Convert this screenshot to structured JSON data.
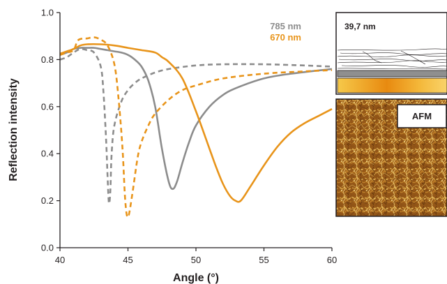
{
  "chart_data": {
    "type": "line",
    "xlabel": "Angle (°)",
    "ylabel": "Reflection intensity",
    "xlim": [
      40,
      60
    ],
    "ylim": [
      0.0,
      1.0
    ],
    "xticks": [
      40,
      45,
      50,
      55,
      60
    ],
    "yticks": [
      0.0,
      0.2,
      0.4,
      0.6,
      0.8,
      1.0
    ],
    "xtick_labels": [
      "40",
      "45",
      "50",
      "55",
      "60"
    ],
    "ytick_labels": [
      "0.0",
      "0.2",
      "0.4",
      "0.6",
      "0.8",
      "1.0"
    ],
    "grid": false,
    "legend_position": "top-right",
    "legend": [
      {
        "label": "785 nm",
        "color": "#8c8c8c"
      },
      {
        "label": "670 nm",
        "color": "#e8941a"
      }
    ],
    "series": [
      {
        "wavelength": "785 nm",
        "style": "dashed",
        "color": "#8c8c8c",
        "x": [
          40.0,
          40.5,
          41.0,
          41.5,
          42.0,
          42.5,
          43.0,
          43.2,
          43.4,
          43.5,
          43.6,
          43.7,
          43.8,
          44.0,
          44.5,
          45.0,
          45.5,
          46.0,
          47.0,
          48.0,
          50.0,
          52.0,
          55.0,
          58.0,
          60.0
        ],
        "y": [
          0.8,
          0.81,
          0.83,
          0.845,
          0.84,
          0.83,
          0.77,
          0.66,
          0.45,
          0.3,
          0.19,
          0.24,
          0.4,
          0.52,
          0.62,
          0.67,
          0.7,
          0.72,
          0.745,
          0.76,
          0.775,
          0.78,
          0.78,
          0.775,
          0.77
        ]
      },
      {
        "wavelength": "785 nm",
        "style": "solid",
        "color": "#8c8c8c",
        "x": [
          40.0,
          40.5,
          41.0,
          41.5,
          42.0,
          42.5,
          43.0,
          43.5,
          44.0,
          44.5,
          45.0,
          45.5,
          46.0,
          46.5,
          47.0,
          47.5,
          48.0,
          48.3,
          48.6,
          49.0,
          49.5,
          50.0,
          51.0,
          52.0,
          53.0,
          55.0,
          57.0,
          60.0
        ],
        "y": [
          0.82,
          0.83,
          0.845,
          0.85,
          0.85,
          0.85,
          0.845,
          0.84,
          0.835,
          0.83,
          0.82,
          0.8,
          0.77,
          0.71,
          0.6,
          0.42,
          0.28,
          0.25,
          0.28,
          0.36,
          0.45,
          0.52,
          0.6,
          0.65,
          0.68,
          0.72,
          0.74,
          0.76
        ]
      },
      {
        "wavelength": "670 nm",
        "style": "dashed",
        "color": "#e8941a",
        "x": [
          40.0,
          40.5,
          41.0,
          41.3,
          41.7,
          42.0,
          42.5,
          43.0,
          43.5,
          44.0,
          44.3,
          44.6,
          44.8,
          45.0,
          45.3,
          45.7,
          46.0,
          46.5,
          47.0,
          48.0,
          49.0,
          50.0,
          52.0,
          55.0,
          58.0,
          60.0
        ],
        "y": [
          0.82,
          0.83,
          0.84,
          0.88,
          0.89,
          0.89,
          0.895,
          0.885,
          0.86,
          0.78,
          0.64,
          0.42,
          0.2,
          0.13,
          0.22,
          0.38,
          0.45,
          0.52,
          0.57,
          0.63,
          0.67,
          0.69,
          0.72,
          0.74,
          0.75,
          0.755
        ]
      },
      {
        "wavelength": "670 nm",
        "style": "solid",
        "color": "#e8941a",
        "x": [
          40.0,
          40.5,
          41.0,
          41.5,
          42.0,
          43.0,
          44.0,
          45.0,
          46.0,
          47.0,
          47.5,
          48.0,
          49.0,
          50.0,
          51.0,
          51.5,
          52.0,
          52.5,
          52.9,
          53.3,
          54.0,
          55.0,
          56.0,
          57.0,
          58.0,
          59.0,
          60.0
        ],
        "y": [
          0.825,
          0.835,
          0.845,
          0.86,
          0.865,
          0.865,
          0.86,
          0.85,
          0.84,
          0.83,
          0.81,
          0.79,
          0.72,
          0.58,
          0.42,
          0.34,
          0.27,
          0.22,
          0.2,
          0.2,
          0.26,
          0.35,
          0.43,
          0.49,
          0.53,
          0.56,
          0.59
        ]
      }
    ]
  },
  "inset": {
    "thickness_label": "39,7 nm",
    "afm_label": "AFM"
  },
  "colors": {
    "gray": "#8c8c8c",
    "orange": "#e8941a",
    "axis": "#231f20"
  }
}
